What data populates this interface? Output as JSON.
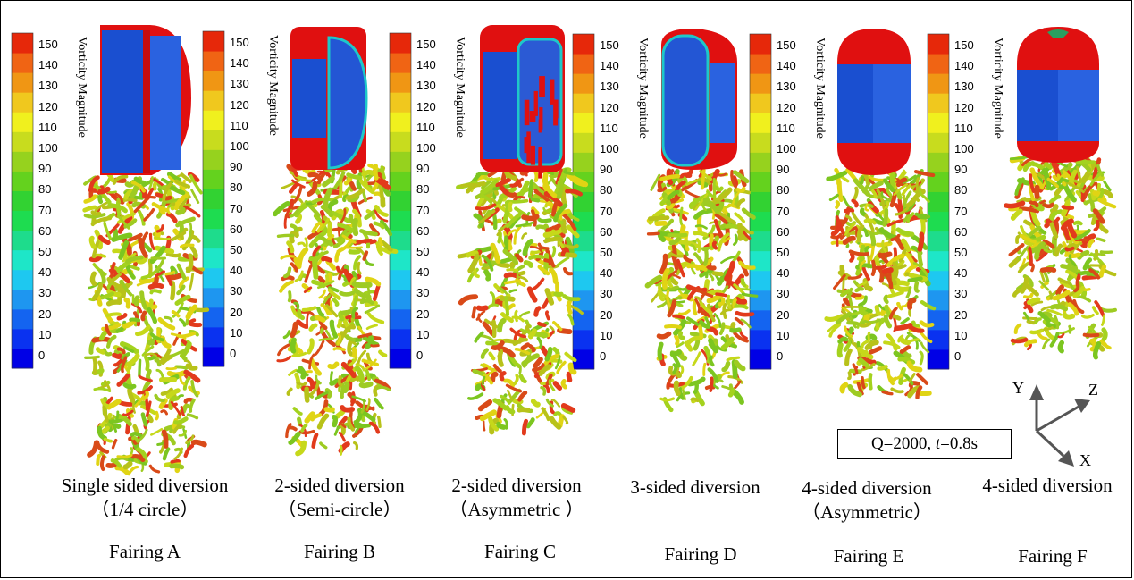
{
  "colorbar": {
    "title": "Vorticity Magnitude",
    "ticks": [
      "150",
      "140",
      "130",
      "120",
      "110",
      "100",
      "90",
      "80",
      "70",
      "60",
      "50",
      "40",
      "30",
      "20",
      "10",
      "0"
    ],
    "colors": [
      "#0000e6",
      "#0a32f0",
      "#1464f0",
      "#1e96f0",
      "#1ec8f0",
      "#1ee6c8",
      "#1edc8c",
      "#1edc50",
      "#32d232",
      "#64d21e",
      "#96d21e",
      "#c8dc1e",
      "#f0f01e",
      "#f0c81e",
      "#f09614",
      "#f06414",
      "#e6280a"
    ]
  },
  "panels": [
    {
      "caption1": "Single sided diversion",
      "caption2": "（1/4 circle）",
      "fairing": "Fairing A"
    },
    {
      "caption1": "2-sided diversion",
      "caption2": "（Semi-circle）",
      "fairing": "Fairing B"
    },
    {
      "caption1": "2-sided diversion",
      "caption2": "（Asymmetric ）",
      "fairing": "Fairing C"
    },
    {
      "caption1": "3-sided diversion",
      "caption2": "",
      "fairing": "Fairing D"
    },
    {
      "caption1": "4-sided diversion",
      "caption2": "（Asymmetric）",
      "fairing": "Fairing E"
    },
    {
      "caption1": "4-sided diversion",
      "caption2": "",
      "fairing": "Fairing F"
    }
  ],
  "condition": {
    "prefix": "Q=2000, ",
    "t_symbol": "t",
    "suffix": "=0.8s"
  },
  "axes": {
    "x": "X",
    "y": "Y",
    "z": "Z"
  }
}
